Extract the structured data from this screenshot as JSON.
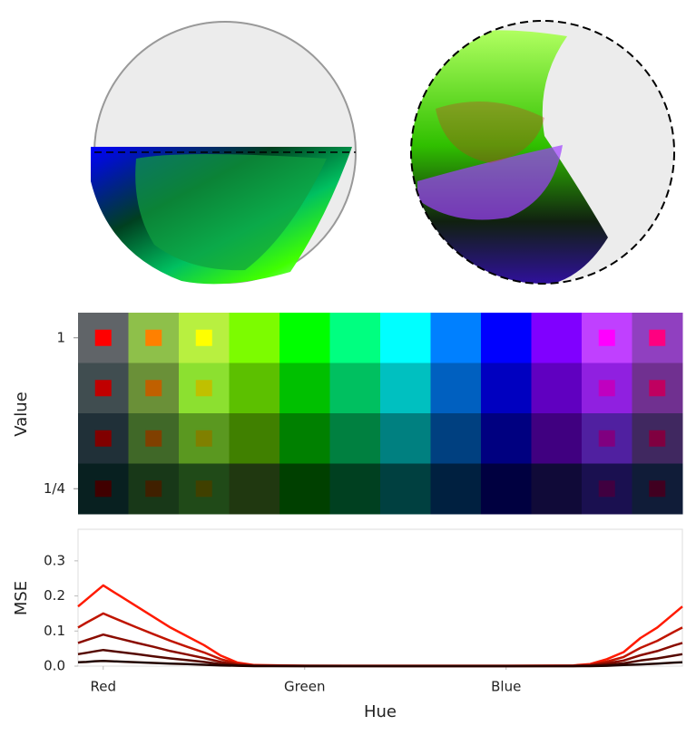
{
  "chart_data": [
    {
      "type": "heatmap",
      "ylabel": "Value",
      "y": [
        1,
        0.75,
        0.5,
        0.25
      ],
      "ylim": [
        0.125,
        1.125
      ],
      "yticks": [
        1,
        {
          "value": 0.25,
          "label": "1/4"
        }
      ],
      "colors": [
        [
          "#606468",
          "#8ec04a",
          "#b8f040",
          "#7cfc00",
          "#00ff00",
          "#00ff80",
          "#00ffff",
          "#0080ff",
          "#0000ff",
          "#8000ff",
          "#c040ff",
          "#9040c0"
        ],
        [
          "#404d50",
          "#6a9038",
          "#8ce030",
          "#5cc000",
          "#00c000",
          "#00c060",
          "#00c0c0",
          "#0060c0",
          "#0000c0",
          "#6000c0",
          "#9020e0",
          "#703090"
        ],
        [
          "#203038",
          "#406828",
          "#5a9820",
          "#408000",
          "#008000",
          "#008040",
          "#008080",
          "#004080",
          "#000080",
          "#400080",
          "#5020a0",
          "#402860"
        ],
        [
          "#082020",
          "#183818",
          "#204a18",
          "#203810",
          "#004000",
          "#004020",
          "#004040",
          "#002040",
          "#000040",
          "#100a38",
          "#1a1050",
          "#101c38"
        ]
      ],
      "inner_colors": [
        [
          "#ff0000",
          "#ff8000",
          "#ffff00",
          "#7cfc00",
          "#00ff00",
          "#00ff80",
          "#00ffff",
          "#0080ff",
          "#0000ff",
          "#8000ff",
          "#ff00ff",
          "#ff0080"
        ],
        [
          "#c00000",
          "#c06000",
          "#c0c000",
          "#5cc000",
          "#00c000",
          "#00c060",
          "#00c0c0",
          "#0060c0",
          "#0000c0",
          "#6000c0",
          "#c000c0",
          "#c00060"
        ],
        [
          "#800000",
          "#804000",
          "#808000",
          "#408000",
          "#008000",
          "#008040",
          "#008080",
          "#004080",
          "#000080",
          "#400080",
          "#800080",
          "#800040"
        ],
        [
          "#400000",
          "#402000",
          "#404000",
          "#203810",
          "#004000",
          "#004020",
          "#004040",
          "#002040",
          "#000040",
          "#100a38",
          "#400040",
          "#400020"
        ]
      ]
    },
    {
      "type": "line",
      "xlabel": "Hue",
      "ylabel": "MSE",
      "x": [
        -15,
        -10,
        -5,
        0,
        5,
        10,
        20,
        30,
        40,
        50,
        60,
        70,
        80,
        90,
        120,
        180,
        240,
        280,
        290,
        300,
        310,
        320,
        330,
        340,
        345
      ],
      "xlim": [
        -15,
        345
      ],
      "xticks": [
        {
          "value": 0,
          "label": "Red"
        },
        {
          "value": 120,
          "label": "Green"
        },
        {
          "value": 240,
          "label": "Blue"
        }
      ],
      "ylim": [
        0,
        0.39
      ],
      "yticks": [
        {
          "value": 0,
          "label": "0.0"
        },
        0.1,
        0.2,
        0.3
      ],
      "series": [
        {
          "color": "#ff1a00",
          "values": [
            0.17,
            0.19,
            0.21,
            0.23,
            0.215,
            0.2,
            0.17,
            0.14,
            0.11,
            0.085,
            0.06,
            0.03,
            0.01,
            0.003,
            0.001,
            0.001,
            0.001,
            0.002,
            0.006,
            0.02,
            0.04,
            0.08,
            0.11,
            0.15,
            0.17
          ]
        },
        {
          "color": "#c01500",
          "values": [
            0.11,
            0.124,
            0.137,
            0.15,
            0.14,
            0.13,
            0.11,
            0.091,
            0.072,
            0.055,
            0.039,
            0.02,
            0.007,
            0.002,
            0.001,
            0.001,
            0.001,
            0.001,
            0.004,
            0.013,
            0.026,
            0.052,
            0.072,
            0.098,
            0.11
          ]
        },
        {
          "color": "#8a0c00",
          "values": [
            0.066,
            0.074,
            0.082,
            0.09,
            0.084,
            0.078,
            0.066,
            0.055,
            0.043,
            0.033,
            0.023,
            0.012,
            0.004,
            0.001,
            0.001,
            0,
            0,
            0.001,
            0.002,
            0.008,
            0.016,
            0.031,
            0.043,
            0.059,
            0.066
          ]
        },
        {
          "color": "#550800",
          "values": [
            0.034,
            0.038,
            0.042,
            0.046,
            0.043,
            0.04,
            0.034,
            0.028,
            0.022,
            0.017,
            0.012,
            0.006,
            0.002,
            0.001,
            0,
            0,
            0,
            0,
            0.001,
            0.004,
            0.008,
            0.016,
            0.022,
            0.03,
            0.034
          ]
        },
        {
          "color": "#220400",
          "values": [
            0.011,
            0.012,
            0.014,
            0.015,
            0.014,
            0.013,
            0.011,
            0.009,
            0.007,
            0.006,
            0.004,
            0.002,
            0.001,
            0,
            0,
            0,
            0,
            0,
            0,
            0.001,
            0.003,
            0.005,
            0.007,
            0.01,
            0.011
          ]
        }
      ]
    }
  ]
}
